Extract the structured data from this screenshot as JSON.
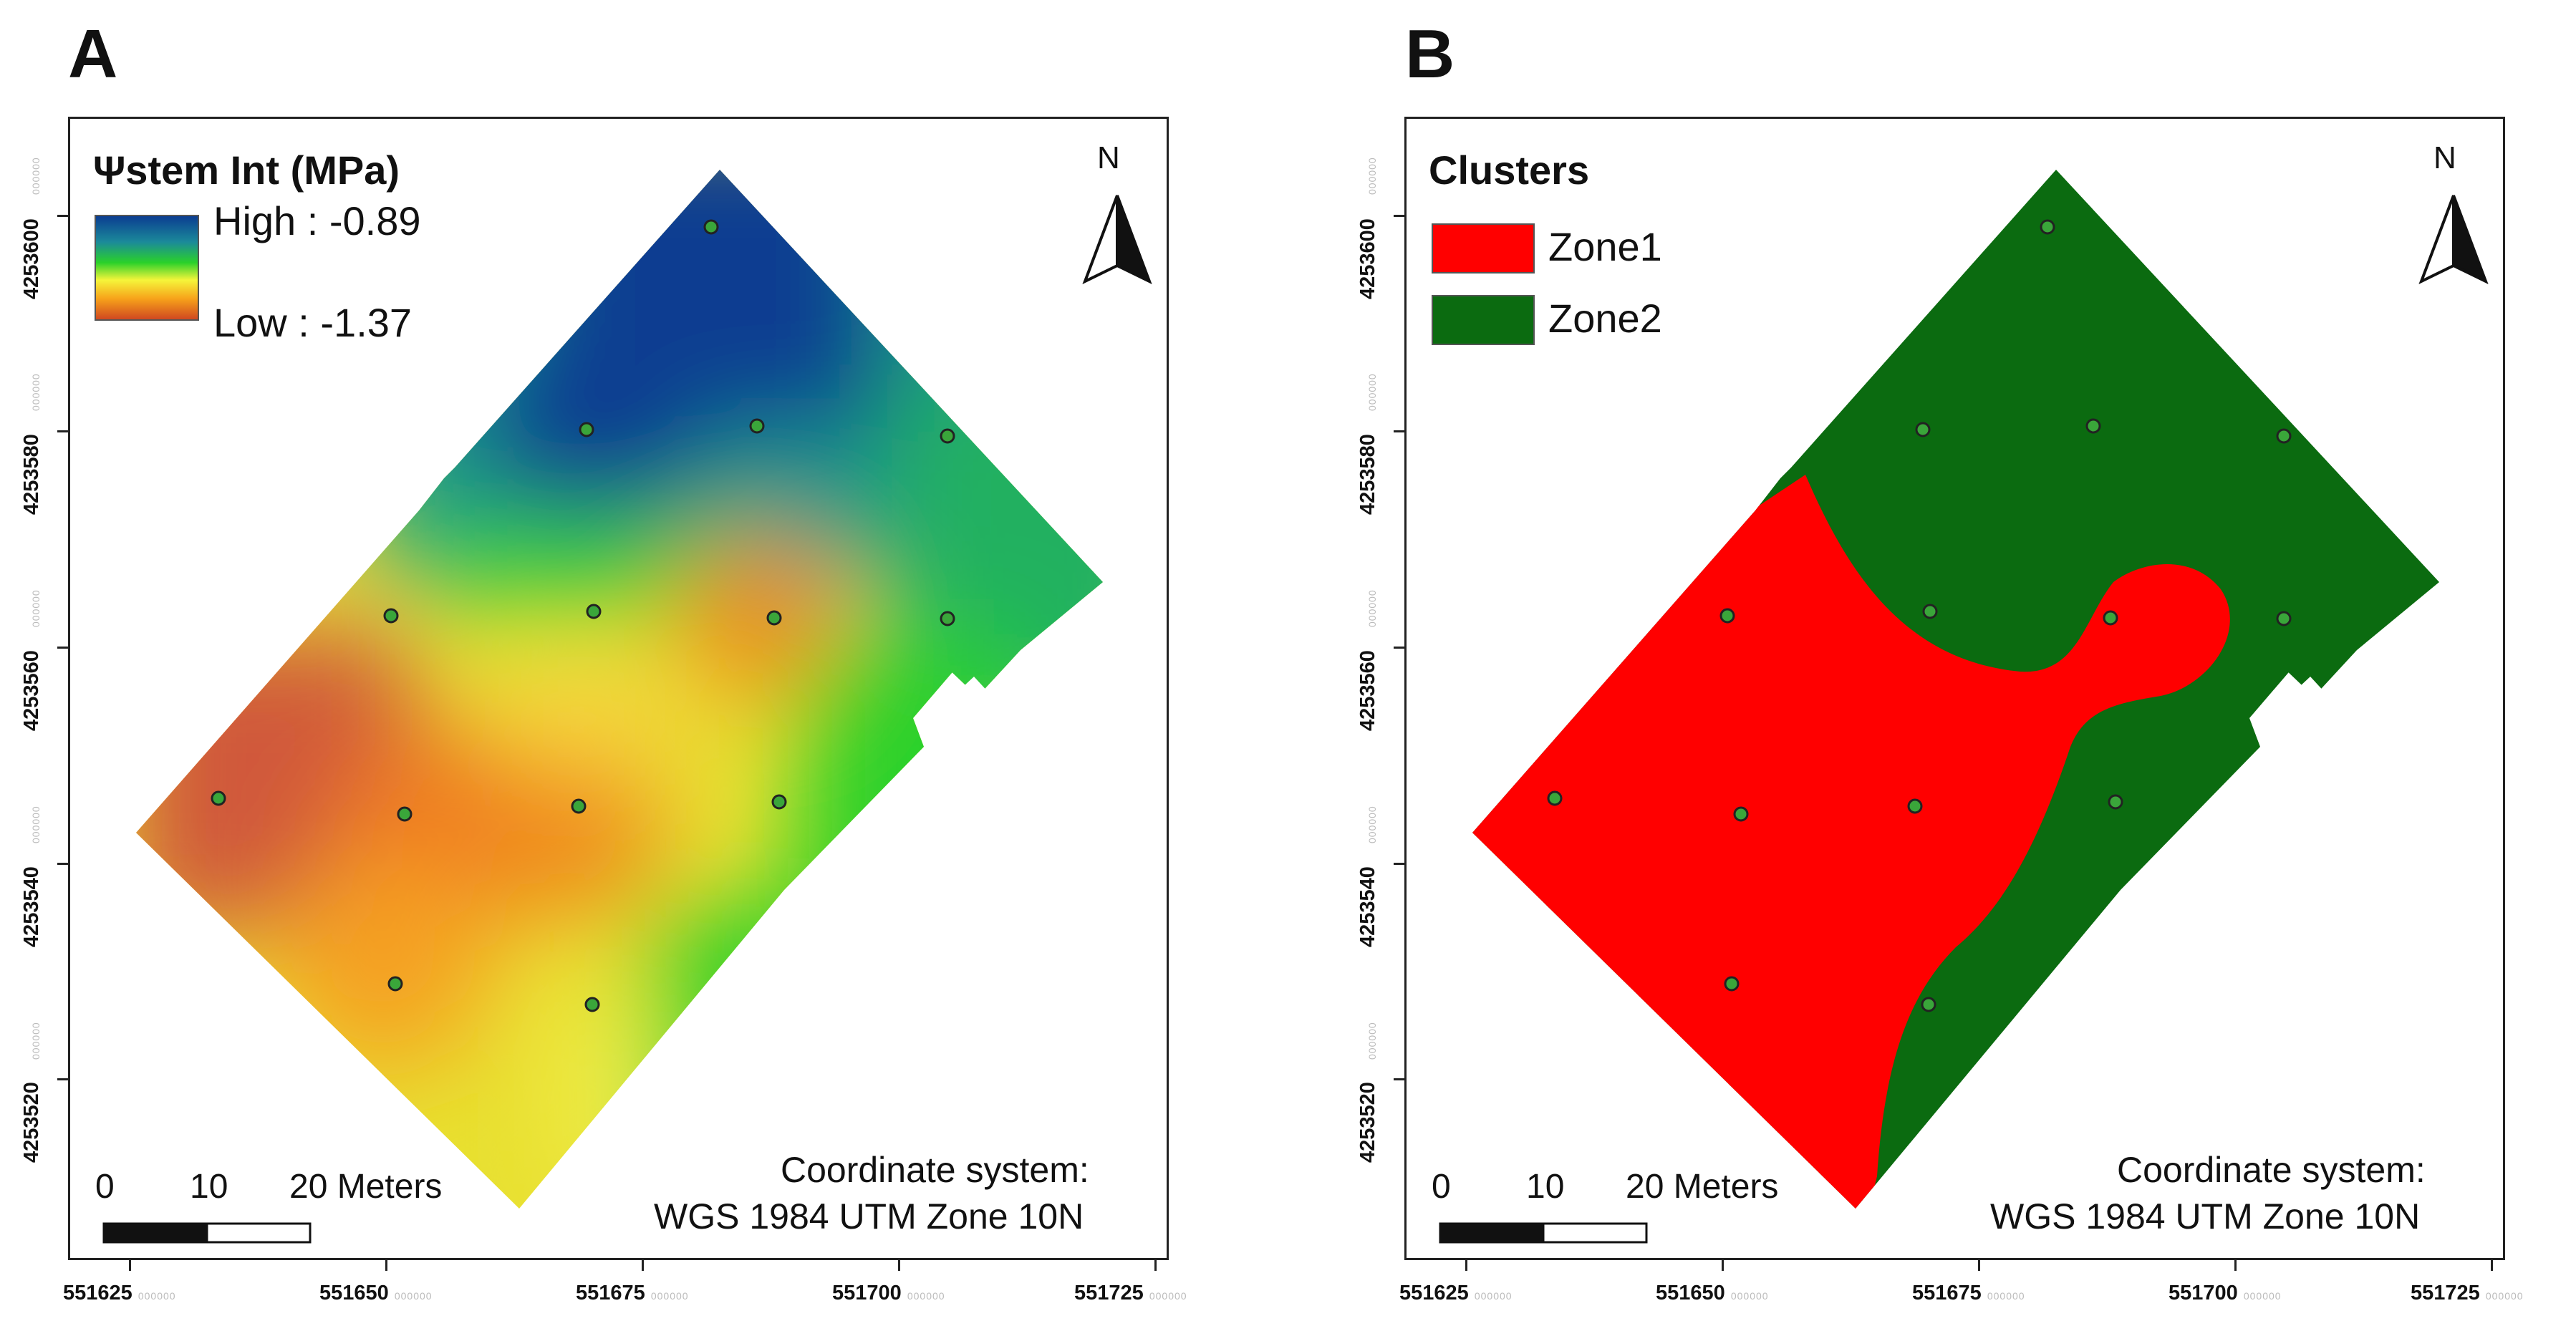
{
  "panels": [
    {
      "letter": "A",
      "legend": {
        "title": "Ψstem Int (MPa)",
        "high_label": "High : -0.89",
        "low_label": "Low : -1.37",
        "gradient": [
          "#0b3d91",
          "#1b8a9a",
          "#2ad12a",
          "#f5f53a",
          "#f7a21a",
          "#d04820"
        ]
      },
      "north_label": "N",
      "scale_labels": [
        "0",
        "10",
        "20 Meters"
      ],
      "coord_system_line1": "Coordinate system:",
      "coord_system_line2": "WGS 1984 UTM Zone 10N",
      "x_ticks": [
        "551625",
        "551650",
        "551675",
        "551700",
        "551725"
      ],
      "y_ticks": [
        "4253600",
        "4253580",
        "4253560",
        "4253540",
        "4253520"
      ],
      "tick_suffix": "000000"
    },
    {
      "letter": "B",
      "legend": {
        "title": "Clusters",
        "items": [
          {
            "label": "Zone1",
            "color": "#ff0000"
          },
          {
            "label": "Zone2",
            "color": "#0b6b10"
          }
        ]
      },
      "north_label": "N",
      "scale_labels": [
        "0",
        "10",
        "20 Meters"
      ],
      "coord_system_line1": "Coordinate system:",
      "coord_system_line2": "WGS 1984 UTM Zone 10N",
      "x_ticks": [
        "551625",
        "551650",
        "551675",
        "551700",
        "551725"
      ],
      "y_ticks": [
        "4253600",
        "4253580",
        "4253560",
        "4253540",
        "4253520"
      ],
      "tick_suffix": "000000"
    }
  ],
  "colors": {
    "zone1": "#ff0000",
    "zone2": "#0b6b10",
    "sample_point": "#3aa63a"
  }
}
